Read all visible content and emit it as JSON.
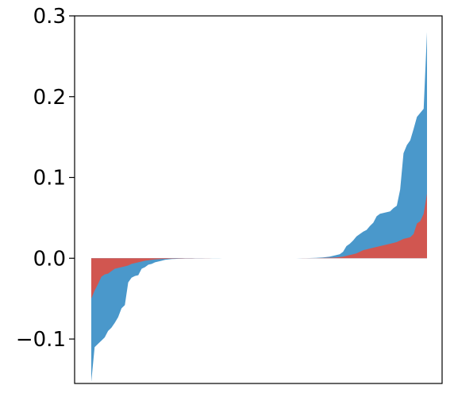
{
  "chart_data": {
    "type": "area",
    "title": "",
    "xlabel": "",
    "ylabel": "",
    "ylim": [
      -0.155,
      0.3
    ],
    "yticks": [
      -0.1,
      0.0,
      0.1,
      0.2,
      0.3
    ],
    "ytick_labels": [
      "−0.1",
      "0.0",
      "0.1",
      "0.2",
      "0.3"
    ],
    "xticks_visible": false,
    "grid": false,
    "n_points": 101,
    "series": [
      {
        "color": "#4a98cb",
        "values": [
          -0.153,
          -0.11,
          -0.106,
          -0.102,
          -0.098,
          -0.09,
          -0.086,
          -0.08,
          -0.073,
          -0.062,
          -0.058,
          -0.03,
          -0.024,
          -0.022,
          -0.021,
          -0.013,
          -0.011,
          -0.008,
          -0.007,
          -0.005,
          -0.004,
          -0.003,
          -0.002,
          -0.0015,
          -0.001,
          -0.0008,
          -0.0006,
          -0.0005,
          -0.0004,
          -0.0003,
          -0.0003,
          -0.0002,
          -0.0002,
          -0.0002,
          -0.0001,
          -0.0001,
          -0.0001,
          -0.0001,
          -0.0001,
          0.0,
          0.0,
          0.0,
          0.0,
          0.0,
          0.0,
          0.0,
          0.0,
          0.0,
          0.0,
          0.0,
          0.0,
          0.0,
          0.0,
          0.0,
          0.0,
          0.0,
          0.0,
          0.0,
          0.0,
          0.0,
          0.0,
          0.0,
          0.0001,
          0.0001,
          0.0002,
          0.0003,
          0.0004,
          0.0005,
          0.0007,
          0.001,
          0.0015,
          0.002,
          0.003,
          0.004,
          0.005,
          0.008,
          0.015,
          0.018,
          0.022,
          0.027,
          0.03,
          0.033,
          0.035,
          0.04,
          0.044,
          0.052,
          0.055,
          0.056,
          0.057,
          0.058,
          0.062,
          0.065,
          0.085,
          0.13,
          0.14,
          0.146,
          0.16,
          0.175,
          0.18,
          0.185,
          0.28
        ]
      },
      {
        "color": "#d15650",
        "values": [
          -0.05,
          -0.04,
          -0.032,
          -0.023,
          -0.02,
          -0.019,
          -0.016,
          -0.013,
          -0.012,
          -0.011,
          -0.01,
          -0.009,
          -0.007,
          -0.006,
          -0.005,
          -0.004,
          -0.003,
          -0.0025,
          -0.002,
          -0.0015,
          -0.0012,
          -0.001,
          -0.0008,
          -0.0006,
          -0.0005,
          -0.0004,
          -0.0003,
          -0.0003,
          -0.0002,
          -0.0002,
          -0.0002,
          -0.0001,
          -0.0001,
          -0.0001,
          -0.0001,
          -0.0001,
          0.0,
          0.0,
          0.0,
          0.0,
          0.0,
          0.0,
          0.0,
          0.0,
          0.0,
          0.0,
          0.0,
          0.0,
          0.0,
          0.0,
          0.0,
          0.0,
          0.0,
          0.0,
          0.0,
          0.0,
          0.0,
          0.0,
          0.0,
          0.0,
          0.0,
          0.0,
          0.0,
          0.0001,
          0.0001,
          0.0001,
          0.0002,
          0.0002,
          0.0003,
          0.0004,
          0.0005,
          0.0006,
          0.0008,
          0.001,
          0.0015,
          0.002,
          0.003,
          0.004,
          0.005,
          0.006,
          0.008,
          0.01,
          0.011,
          0.012,
          0.013,
          0.014,
          0.015,
          0.016,
          0.017,
          0.018,
          0.019,
          0.02,
          0.022,
          0.024,
          0.025,
          0.026,
          0.03,
          0.043,
          0.046,
          0.055,
          0.08
        ]
      }
    ]
  }
}
